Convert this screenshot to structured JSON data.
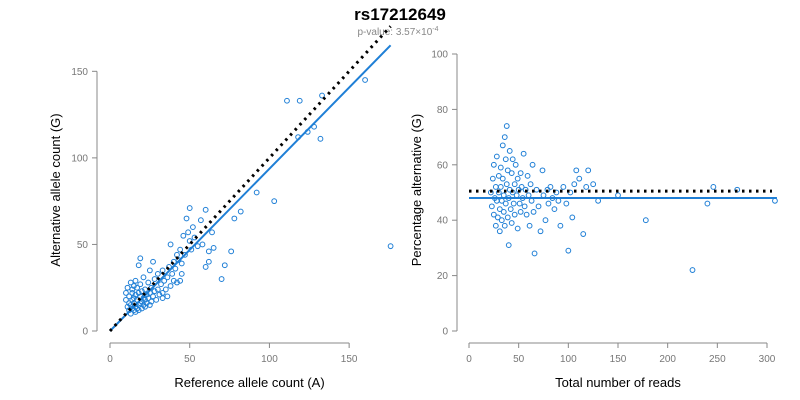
{
  "header": {
    "title": "rs17212649",
    "pvalue_prefix": "p-value: 3.57×10",
    "pvalue_exponent": "-4"
  },
  "chart_data": [
    {
      "type": "scatter",
      "xlabel": "Reference allele count (A)",
      "ylabel": "Alternative allele count (G)",
      "xlim": [
        0,
        175
      ],
      "ylim": [
        0,
        160
      ],
      "xticks": [
        0,
        50,
        100,
        150
      ],
      "yticks": [
        0,
        50,
        100,
        150
      ],
      "marker_color": "#1f7fd6",
      "points": [
        [
          10,
          18
        ],
        [
          10,
          22
        ],
        [
          11,
          14
        ],
        [
          11,
          25
        ],
        [
          12,
          12
        ],
        [
          12,
          16
        ],
        [
          12,
          20
        ],
        [
          13,
          10
        ],
        [
          13,
          15
        ],
        [
          13,
          28
        ],
        [
          14,
          13
        ],
        [
          14,
          18
        ],
        [
          14,
          22
        ],
        [
          14,
          24
        ],
        [
          15,
          12
        ],
        [
          15,
          16
        ],
        [
          15,
          19
        ],
        [
          15,
          26
        ],
        [
          16,
          11
        ],
        [
          16,
          14
        ],
        [
          16,
          21
        ],
        [
          16,
          29
        ],
        [
          17,
          13
        ],
        [
          17,
          18
        ],
        [
          17,
          25
        ],
        [
          18,
          12
        ],
        [
          18,
          15
        ],
        [
          18,
          22
        ],
        [
          19,
          16
        ],
        [
          19,
          20
        ],
        [
          19,
          27
        ],
        [
          20,
          13
        ],
        [
          20,
          17
        ],
        [
          20,
          23
        ],
        [
          21,
          15
        ],
        [
          21,
          19
        ],
        [
          21,
          31
        ],
        [
          22,
          14
        ],
        [
          22,
          18
        ],
        [
          22,
          24
        ],
        [
          23,
          16
        ],
        [
          23,
          21
        ],
        [
          24,
          19
        ],
        [
          24,
          28
        ],
        [
          25,
          15
        ],
        [
          25,
          22
        ],
        [
          26,
          17
        ],
        [
          26,
          25
        ],
        [
          27,
          20
        ],
        [
          28,
          23
        ],
        [
          28,
          30
        ],
        [
          29,
          18
        ],
        [
          30,
          24
        ],
        [
          30,
          33
        ],
        [
          31,
          21
        ],
        [
          32,
          27
        ],
        [
          33,
          19
        ],
        [
          33,
          35
        ],
        [
          34,
          29
        ],
        [
          35,
          24
        ],
        [
          36,
          31
        ],
        [
          37,
          37
        ],
        [
          38,
          26
        ],
        [
          38,
          50
        ],
        [
          39,
          33
        ],
        [
          40,
          40
        ],
        [
          40,
          29
        ],
        [
          41,
          36
        ],
        [
          42,
          28
        ],
        [
          42,
          44
        ],
        [
          43,
          41
        ],
        [
          44,
          47
        ],
        [
          45,
          39
        ],
        [
          45,
          33
        ],
        [
          46,
          55
        ],
        [
          47,
          44
        ],
        [
          48,
          65
        ],
        [
          49,
          57
        ],
        [
          50,
          52
        ],
        [
          50,
          71
        ],
        [
          51,
          47
        ],
        [
          52,
          60
        ],
        [
          53,
          54
        ],
        [
          55,
          49
        ],
        [
          57,
          64
        ],
        [
          58,
          50
        ],
        [
          60,
          70
        ],
        [
          62,
          40
        ],
        [
          64,
          57
        ],
        [
          65,
          48
        ],
        [
          18,
          38
        ],
        [
          19,
          42
        ],
        [
          25,
          35
        ],
        [
          27,
          40
        ],
        [
          33,
          22
        ],
        [
          36,
          20
        ],
        [
          44,
          29
        ],
        [
          60,
          37
        ],
        [
          62,
          46
        ],
        [
          70,
          30
        ],
        [
          72,
          38
        ],
        [
          76,
          46
        ],
        [
          78,
          65
        ],
        [
          82,
          69
        ],
        [
          92,
          80
        ],
        [
          103,
          75
        ],
        [
          111,
          133
        ],
        [
          118,
          112
        ],
        [
          119,
          133
        ],
        [
          124,
          115
        ],
        [
          128,
          118
        ],
        [
          132,
          111
        ],
        [
          133,
          136
        ],
        [
          160,
          145
        ],
        [
          176,
          49
        ]
      ],
      "lines": [
        {
          "name": "fitted",
          "style": "solid",
          "color": "#1f7fd6",
          "x": [
            0,
            176
          ],
          "y": [
            0,
            165
          ]
        },
        {
          "name": "expected",
          "style": "dotted",
          "color": "#000000",
          "x": [
            0,
            176
          ],
          "y": [
            0,
            176
          ]
        }
      ]
    },
    {
      "type": "scatter",
      "xlabel": "Total number of reads",
      "ylabel": "Percentage alternative (G)",
      "xlim": [
        0,
        300
      ],
      "ylim": [
        0,
        100
      ],
      "xticks": [
        0,
        50,
        100,
        150,
        200,
        250,
        300
      ],
      "yticks": [
        0,
        20,
        40,
        60,
        80,
        100
      ],
      "marker_color": "#1f7fd6",
      "points": [
        [
          22,
          50
        ],
        [
          23,
          45
        ],
        [
          24,
          55
        ],
        [
          25,
          42
        ],
        [
          25,
          60
        ],
        [
          26,
          48
        ],
        [
          27,
          52
        ],
        [
          27,
          38
        ],
        [
          28,
          63
        ],
        [
          28,
          47
        ],
        [
          29,
          41
        ],
        [
          30,
          56
        ],
        [
          30,
          50
        ],
        [
          31,
          36
        ],
        [
          31,
          44
        ],
        [
          32,
          59
        ],
        [
          32,
          52
        ],
        [
          33,
          47
        ],
        [
          33,
          40
        ],
        [
          34,
          67
        ],
        [
          34,
          55
        ],
        [
          35,
          43
        ],
        [
          35,
          49
        ],
        [
          36,
          70
        ],
        [
          36,
          38
        ],
        [
          37,
          62
        ],
        [
          37,
          46
        ],
        [
          38,
          53
        ],
        [
          38,
          74
        ],
        [
          39,
          41
        ],
        [
          39,
          58
        ],
        [
          40,
          48
        ],
        [
          40,
          31
        ],
        [
          41,
          65
        ],
        [
          41,
          51
        ],
        [
          42,
          44
        ],
        [
          43,
          57
        ],
        [
          43,
          39
        ],
        [
          44,
          62
        ],
        [
          44,
          50
        ],
        [
          45,
          46
        ],
        [
          46,
          53
        ],
        [
          46,
          42
        ],
        [
          47,
          60
        ],
        [
          48,
          49
        ],
        [
          49,
          55
        ],
        [
          49,
          37
        ],
        [
          50,
          51
        ],
        [
          51,
          46
        ],
        [
          52,
          57
        ],
        [
          52,
          43
        ],
        [
          53,
          52
        ],
        [
          54,
          48
        ],
        [
          55,
          64
        ],
        [
          56,
          45
        ],
        [
          57,
          51
        ],
        [
          58,
          42
        ],
        [
          59,
          56
        ],
        [
          60,
          49
        ],
        [
          61,
          38
        ],
        [
          62,
          53
        ],
        [
          63,
          47
        ],
        [
          64,
          60
        ],
        [
          65,
          43
        ],
        [
          66,
          28
        ],
        [
          68,
          51
        ],
        [
          70,
          45
        ],
        [
          72,
          36
        ],
        [
          74,
          58
        ],
        [
          75,
          49
        ],
        [
          77,
          40
        ],
        [
          79,
          51
        ],
        [
          80,
          46
        ],
        [
          82,
          52
        ],
        [
          84,
          48
        ],
        [
          86,
          44
        ],
        [
          88,
          50
        ],
        [
          90,
          47
        ],
        [
          92,
          38
        ],
        [
          95,
          52
        ],
        [
          98,
          46
        ],
        [
          100,
          29
        ],
        [
          102,
          50
        ],
        [
          104,
          41
        ],
        [
          106,
          53
        ],
        [
          108,
          58
        ],
        [
          111,
          55
        ],
        [
          115,
          35
        ],
        [
          118,
          52
        ],
        [
          120,
          58
        ],
        [
          125,
          53
        ],
        [
          130,
          47
        ],
        [
          150,
          49
        ],
        [
          178,
          40
        ],
        [
          225,
          22
        ],
        [
          240,
          46
        ],
        [
          246,
          52
        ],
        [
          270,
          51
        ],
        [
          308,
          47
        ]
      ],
      "lines": [
        {
          "name": "fitted",
          "style": "solid",
          "color": "#1f7fd6",
          "x": [
            0,
            310
          ],
          "y": [
            48,
            48
          ]
        },
        {
          "name": "expected",
          "style": "dotted",
          "color": "#000000",
          "x": [
            0,
            305
          ],
          "y": [
            50.5,
            50.5
          ]
        }
      ]
    }
  ]
}
